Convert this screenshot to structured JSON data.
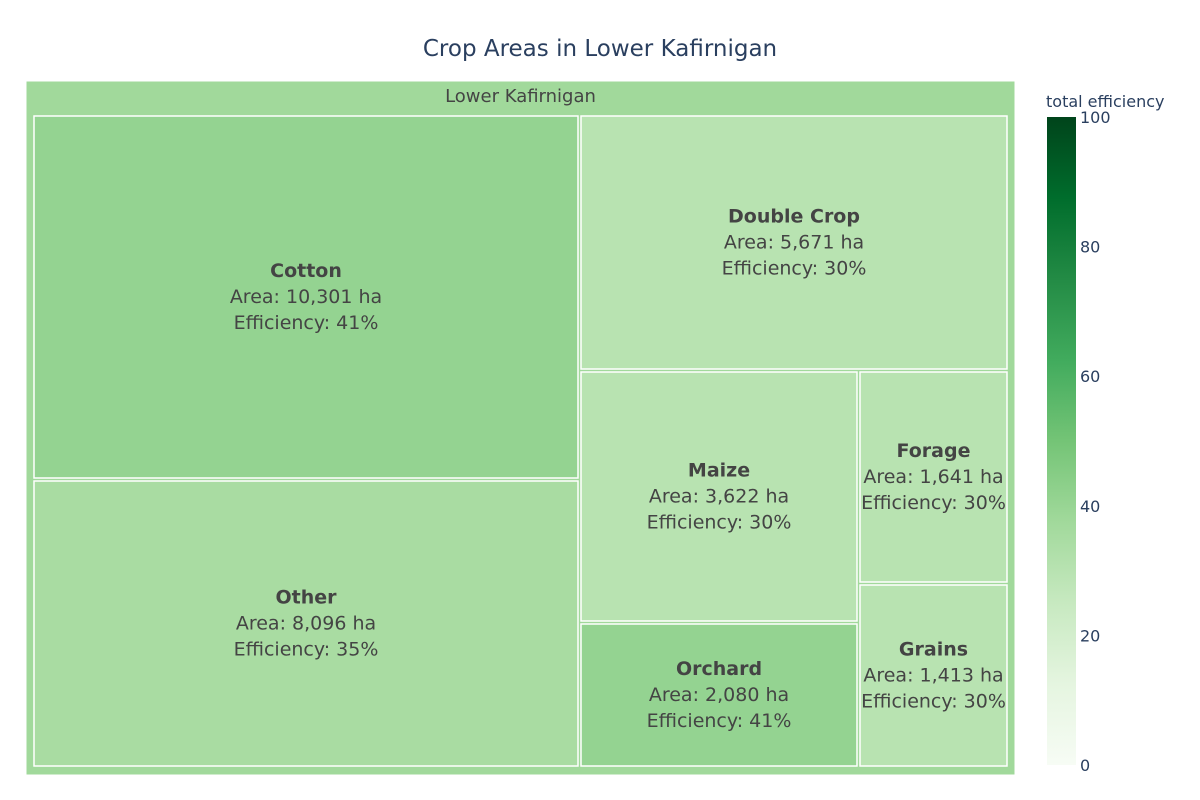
{
  "chart_data": {
    "type": "treemap",
    "title": "Crop Areas in Lower Kafirnigan",
    "root": {
      "label": "Lower Kafirnigan",
      "efficiency": 37.5
    },
    "area_prefix": "Area: ",
    "area_unit": " ha",
    "efficiency_prefix": "Efficiency: ",
    "efficiency_unit": "%",
    "items": [
      {
        "label": "Cotton",
        "area": "10,301",
        "efficiency": 41
      },
      {
        "label": "Other",
        "area": "8,096",
        "efficiency": 35
      },
      {
        "label": "Double Crop",
        "area": "5,671",
        "efficiency": 30
      },
      {
        "label": "Maize",
        "area": "3,622",
        "efficiency": 30
      },
      {
        "label": "Orchard",
        "area": "2,080",
        "efficiency": 41
      },
      {
        "label": "Forage",
        "area": "1,641",
        "efficiency": 30
      },
      {
        "label": "Grains",
        "area": "1,413",
        "efficiency": 30
      }
    ],
    "colorbar": {
      "title": "total efficiency",
      "range": [
        0,
        100
      ],
      "ticks": [
        "0",
        "20",
        "40",
        "60",
        "80",
        "100"
      ],
      "colors": [
        "#f7fcf5",
        "#e5f5e0",
        "#c7e9c0",
        "#a1d99b",
        "#74c476",
        "#41ab5d",
        "#238b45",
        "#006d2c",
        "#00441b"
      ]
    }
  }
}
